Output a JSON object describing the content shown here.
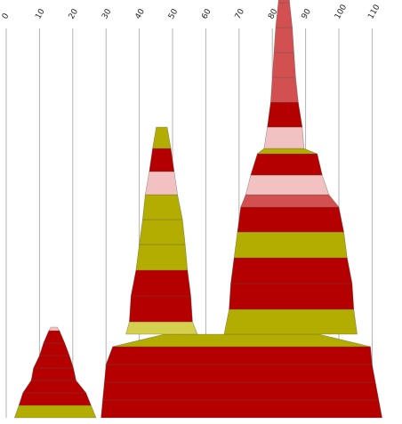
{
  "chart_data": {
    "type": "bar",
    "title": "",
    "xlabel": "",
    "ylabel": "",
    "xlim": [
      0,
      115
    ],
    "xtick_labels": [
      "0",
      "10",
      "20",
      "30",
      "40",
      "50",
      "60",
      "70",
      "80",
      "90",
      "100",
      "110"
    ],
    "x_axis_position": "top",
    "tick_label_rotation": "diagonal",
    "grid": true,
    "legend": "none",
    "colors": {
      "dark_red": "#b50000",
      "olive": "#b2ad00",
      "pink": "#f2c2c2",
      "coral": "#d35050",
      "light_olive": "#d4d04e",
      "grid": "#b3b3b3"
    },
    "stacks": [
      {
        "name": "",
        "layers": [
          {
            "left": 2.5,
            "right": 27,
            "color": "olive"
          },
          {
            "left": 3.8,
            "right": 25.5,
            "color": "dark_red"
          },
          {
            "left": 5.0,
            "right": 24.0,
            "color": "dark_red"
          },
          {
            "left": 7.5,
            "right": 21.0,
            "color": "dark_red"
          },
          {
            "left": 8.2,
            "right": 20.2,
            "color": "dark_red"
          },
          {
            "left": 10.0,
            "right": 19.0,
            "color": "dark_red"
          },
          {
            "left": 11.2,
            "right": 17.6,
            "color": "dark_red"
          },
          {
            "left": 12.8,
            "right": 16.0,
            "color": "pink"
          }
        ]
      },
      {
        "name": "",
        "layers": [
          {
            "left": 28.5,
            "right": 113.0,
            "color": "dark_red"
          },
          {
            "left": 29.0,
            "right": 112.0,
            "color": "dark_red"
          },
          {
            "left": 29.5,
            "right": 111.0,
            "color": "dark_red"
          },
          {
            "left": 30.0,
            "right": 110.0,
            "color": "dark_red"
          },
          {
            "left": 32.0,
            "right": 109.5,
            "color": "olive"
          }
        ]
      },
      {
        "name": "",
        "layers": [
          {
            "left": 36.0,
            "right": 57.5,
            "color": "light_olive"
          },
          {
            "left": 37.0,
            "right": 56.0,
            "color": "dark_red"
          },
          {
            "left": 37.5,
            "right": 55.5,
            "color": "dark_red"
          },
          {
            "left": 39.0,
            "right": 54.5,
            "color": "olive"
          },
          {
            "left": 40.0,
            "right": 53.8,
            "color": "olive"
          },
          {
            "left": 41.0,
            "right": 53.0,
            "color": "olive"
          },
          {
            "left": 41.8,
            "right": 51.5,
            "color": "pink"
          },
          {
            "left": 43.0,
            "right": 50.5,
            "color": "dark_red"
          },
          {
            "left": 44.0,
            "right": 49.5,
            "color": "olive"
          }
        ]
      },
      {
        "name": "",
        "layers": [
          {
            "left": 65.5,
            "right": 105.5,
            "color": "olive"
          },
          {
            "left": 67.0,
            "right": 104.5,
            "color": "dark_red"
          },
          {
            "left": 67.5,
            "right": 104.0,
            "color": "dark_red"
          },
          {
            "left": 68.5,
            "right": 102.5,
            "color": "olive"
          },
          {
            "left": 69.5,
            "right": 101.5,
            "color": "dark_red"
          },
          {
            "left": 70.5,
            "right": 100.0,
            "color": "coral"
          },
          {
            "left": 72.0,
            "right": 97.0,
            "color": "pink"
          },
          {
            "left": 73.5,
            "right": 95.0,
            "color": "dark_red"
          },
          {
            "left": 75.5,
            "right": 93.5,
            "color": "olive"
          },
          {
            "left": 77.5,
            "right": 89.5,
            "color": "pink"
          },
          {
            "left": 78.5,
            "right": 89.0,
            "color": "dark_red"
          },
          {
            "left": 79.5,
            "right": 87.8,
            "color": "coral"
          },
          {
            "left": 80.0,
            "right": 87.0,
            "color": "coral"
          },
          {
            "left": 80.5,
            "right": 86.5,
            "color": "coral"
          },
          {
            "left": 81.0,
            "right": 86.0,
            "color": "coral"
          },
          {
            "left": 81.8,
            "right": 85.2,
            "color": "coral"
          }
        ]
      }
    ]
  }
}
